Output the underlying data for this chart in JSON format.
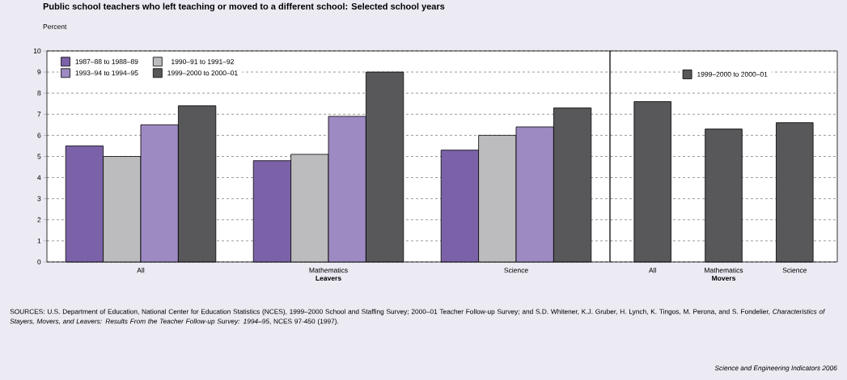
{
  "chart_data": [
    {
      "type": "bar",
      "title": "Public school teachers who left teaching or moved to a different school: Selected school years",
      "ylabel": "Percent",
      "xlabel": "Leavers",
      "categories": [
        "All",
        "Mathematics",
        "Science"
      ],
      "series": [
        {
          "name": "1987–88 to 1988–89",
          "color": "#7b62a8",
          "values": [
            5.5,
            4.8,
            5.3
          ]
        },
        {
          "name": "1990–91 to 1991–92",
          "color": "#bcbcbe",
          "values": [
            5.0,
            5.1,
            6.0
          ]
        },
        {
          "name": "1993–94 to 1994–95",
          "color": "#9d8ac2",
          "values": [
            6.5,
            6.9,
            6.4
          ]
        },
        {
          "name": "1999–2000 to 2000–01",
          "color": "#58585a",
          "values": [
            7.4,
            9.0,
            7.3
          ]
        }
      ],
      "ylim": [
        0,
        10
      ],
      "yticks": [
        0,
        1,
        2,
        3,
        4,
        5,
        6,
        7,
        8,
        9,
        10
      ],
      "grid": "y",
      "legend": "top left",
      "annotations": [
        "SOURCES: U.S. Department of Education, National Center for Education Statistics (NCES), 1999–2000 School and Staffing Survey; 2000–01 Teacher Follow-up Survey; and S.D. Whitener, K.J. Gruber, H. Lynch, K. Tingos, M. Perona, and S. Fondelier, *Characteristics of Stayers, Movers, and Leavers: Results From the Teacher Follow-up Survey: 1994–95*, NCES 97-450 (1997).",
        "Science and Engineering Indicators 2006"
      ]
    },
    {
      "type": "bar",
      "xlabel": "Movers",
      "categories": [
        "All",
        "Mathematics",
        "Science"
      ],
      "series": [
        {
          "name": "1999–2000 to 2000–01",
          "color": "#58585a",
          "values": [
            7.6,
            6.3,
            6.6
          ]
        }
      ],
      "ylim": [
        0,
        10
      ],
      "yticks": [
        0,
        1,
        2,
        3,
        4,
        5,
        6,
        7,
        8,
        9,
        10
      ],
      "grid": "y",
      "legend": "top",
      "tick_labels": "x"
    }
  ]
}
